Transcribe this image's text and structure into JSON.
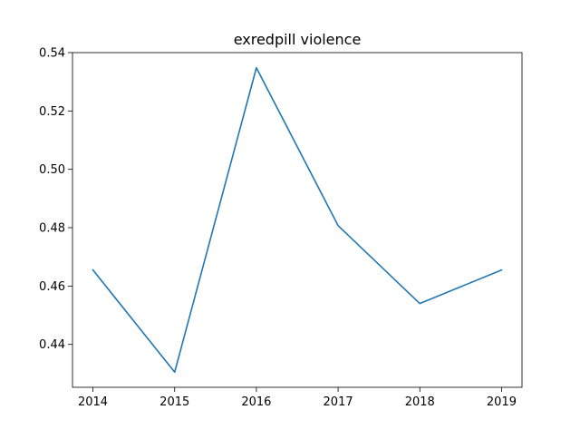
{
  "chart_data": {
    "type": "line",
    "title": "exredpill violence",
    "xlabel": "",
    "ylabel": "",
    "x": [
      2014,
      2015,
      2016,
      2017,
      2018,
      2019
    ],
    "series": [
      {
        "values": [
          0.4655,
          0.4305,
          0.5348,
          0.4807,
          0.454,
          0.4655
        ],
        "color": "#1f77b4"
      }
    ],
    "xticks": [
      "2014",
      "2015",
      "2016",
      "2017",
      "2018",
      "2019"
    ],
    "yticks": [
      "0.44",
      "0.46",
      "0.48",
      "0.50",
      "0.52",
      "0.54"
    ],
    "ytick_values": [
      0.44,
      0.46,
      0.48,
      0.5,
      0.52,
      0.54
    ],
    "xlim": [
      2013.75,
      2019.25
    ],
    "ylim": [
      0.4253,
      0.54
    ],
    "grid": false,
    "legend": "none"
  }
}
